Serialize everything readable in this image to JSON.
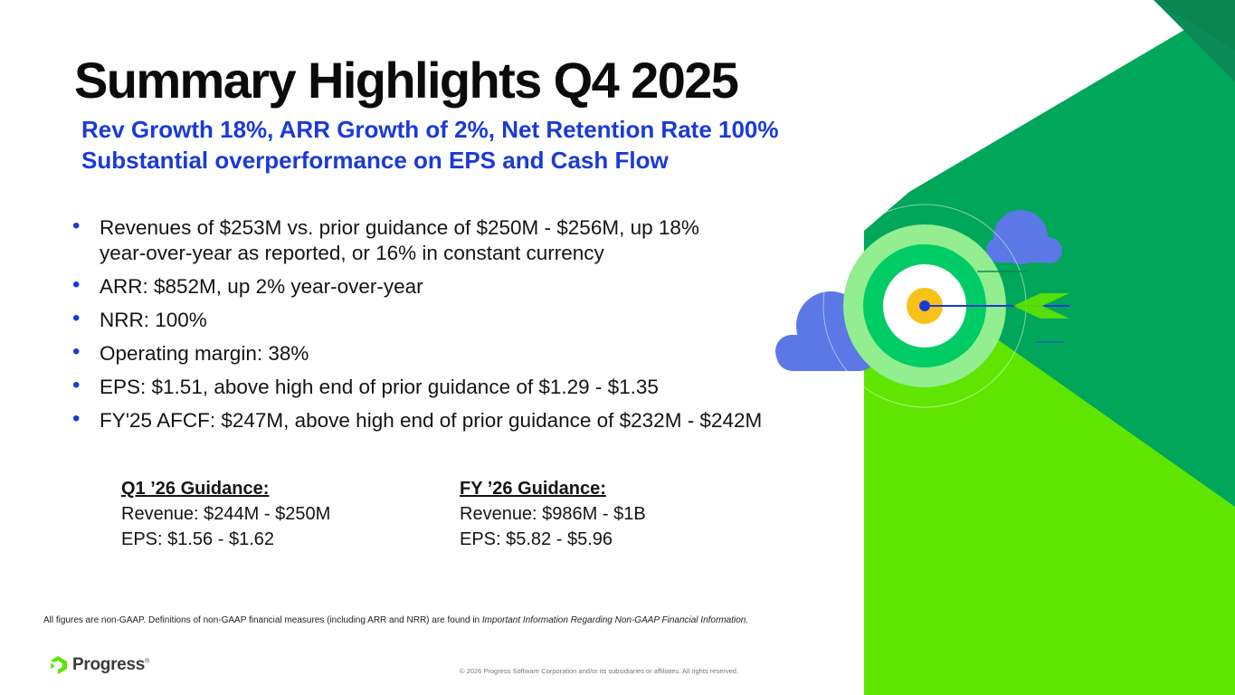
{
  "title": "Summary Highlights Q4 2025",
  "subtitle": {
    "line1": "Rev Growth 18%, ARR Growth of 2%, Net Retention Rate 100%",
    "line2": "Substantial overperformance on EPS and Cash Flow"
  },
  "bullets": [
    "Revenues of $253M vs. prior guidance of $250M - $256M, up 18% year-over-year as reported, or 16% in constant currency",
    "ARR: $852M, up 2% year-over-year",
    "NRR: 100%",
    "Operating margin: 38%",
    "EPS: $1.51, above high end of prior guidance of $1.29 - $1.35",
    "FY'25 AFCF: $247M, above high end of prior guidance of $232M - $242M"
  ],
  "guidance": [
    {
      "heading": "Q1 ’26 Guidance:",
      "revenue": "Revenue: $244M - $250M",
      "eps": "EPS: $1.56 - $1.62"
    },
    {
      "heading": "FY ’26 Guidance:",
      "revenue": "Revenue: $986M - $1B",
      "eps": "EPS: $5.82 - $5.96"
    }
  ],
  "footnote": {
    "text": "All figures are non-GAAP. Definitions of non-GAAP financial measures (including ARR and NRR) are found in ",
    "italic": "Important Information Regarding Non-GAAP Financial Information."
  },
  "logo": {
    "name": "Progress",
    "mark": "®"
  },
  "copyright": "© 2026 Progress Software Corporation and/or its subsidiaries or affiliates. All rights reserved.",
  "colors": {
    "accent_blue": "#1a3ad8",
    "green_dark": "#0b8a5a",
    "green_mid": "#00a65a",
    "green_light": "#5fe500",
    "cloud": "#5b78e6",
    "target_yellow": "#f9c21b"
  },
  "icons": [
    "target-icon",
    "cloud-icon",
    "arrow-icon",
    "progress-logo-icon"
  ]
}
